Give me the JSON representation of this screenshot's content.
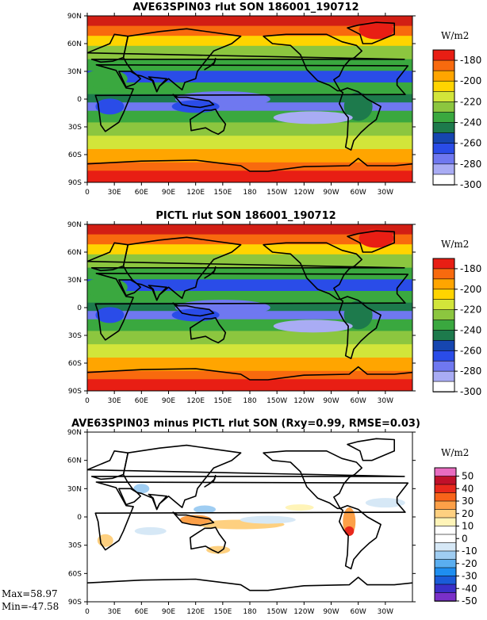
{
  "panels": [
    {
      "title": "AVE63SPIN03 rlut SON 186001_190712",
      "units": "W/m2",
      "colorbar_labels": [
        "-180",
        "-200",
        "-220",
        "-240",
        "-260",
        "-280",
        "-300"
      ],
      "colorbar_colors": [
        "#e81e14",
        "#f86a0e",
        "#ffa500",
        "#ffd400",
        "#d2e53a",
        "#8cc63f",
        "#3aa83f",
        "#1d7a4c",
        "#1646b0",
        "#2a4ce8",
        "#6f78f0",
        "#a9acf4",
        "#ffffff"
      ]
    },
    {
      "title": "PICTL rlut SON 186001_190712",
      "units": "W/m2",
      "colorbar_labels": [
        "-180",
        "-200",
        "-220",
        "-240",
        "-260",
        "-280",
        "-300"
      ],
      "colorbar_colors": [
        "#e81e14",
        "#f86a0e",
        "#ffa500",
        "#ffd400",
        "#d2e53a",
        "#8cc63f",
        "#3aa83f",
        "#1d7a4c",
        "#1646b0",
        "#2a4ce8",
        "#6f78f0",
        "#a9acf4",
        "#ffffff"
      ]
    },
    {
      "title": "AVE63SPIN03 minus PICTL rlut SON (Rxy=0.99, RMSE=0.03)",
      "units": "W/m2",
      "colorbar_labels": [
        "50",
        "40",
        "30",
        "20",
        "10",
        "0",
        "-10",
        "-20",
        "-30",
        "-40",
        "-50"
      ],
      "colorbar_colors": [
        "#e86cc0",
        "#c0102a",
        "#e8281c",
        "#f8641a",
        "#fca048",
        "#fed080",
        "#fff4b8",
        "#ffffff",
        "#ffffff",
        "#d6e8f6",
        "#9fcdf2",
        "#5aaef0",
        "#1e8ef0",
        "#1a5cd8",
        "#3a30c8",
        "#7a30c8"
      ],
      "max_text": "Max=58.97",
      "min_text": "Min=-47.58"
    }
  ],
  "x_ticks": [
    "0",
    "30E",
    "60E",
    "90E",
    "120E",
    "150E",
    "180",
    "150W",
    "120W",
    "90W",
    "60W",
    "30W"
  ],
  "y_ticks": [
    "90N",
    "60N",
    "30N",
    "0",
    "30S",
    "60S",
    "90S"
  ],
  "chart_data": [
    {
      "type": "heatmap",
      "title": "AVE63SPIN03 rlut SON 186001_190712",
      "xlabel": "",
      "ylabel": "",
      "x_range": [
        "0",
        "360"
      ],
      "y_range": [
        "90S",
        "90N"
      ],
      "colorbar_units": "W/m2",
      "colorbar_levels": [
        -180,
        -190,
        -200,
        -210,
        -220,
        -230,
        -240,
        -250,
        -260,
        -270,
        -280,
        -290,
        -300
      ],
      "grid": false
    },
    {
      "type": "heatmap",
      "title": "PICTL rlut SON 186001_190712",
      "xlabel": "",
      "ylabel": "",
      "x_range": [
        "0",
        "360"
      ],
      "y_range": [
        "90S",
        "90N"
      ],
      "colorbar_units": "W/m2",
      "colorbar_levels": [
        -180,
        -190,
        -200,
        -210,
        -220,
        -230,
        -240,
        -250,
        -260,
        -270,
        -280,
        -290,
        -300
      ],
      "grid": false
    },
    {
      "type": "heatmap",
      "title": "AVE63SPIN03 minus PICTL rlut SON (Rxy=0.99, RMSE=0.03)",
      "xlabel": "",
      "ylabel": "",
      "x_range": [
        "0",
        "360"
      ],
      "y_range": [
        "90S",
        "90N"
      ],
      "colorbar_units": "W/m2",
      "colorbar_levels": [
        50,
        40,
        30,
        20,
        10,
        0,
        -10,
        -20,
        -30,
        -40,
        -50
      ],
      "max": 58.97,
      "min": -47.58,
      "grid": false
    }
  ]
}
